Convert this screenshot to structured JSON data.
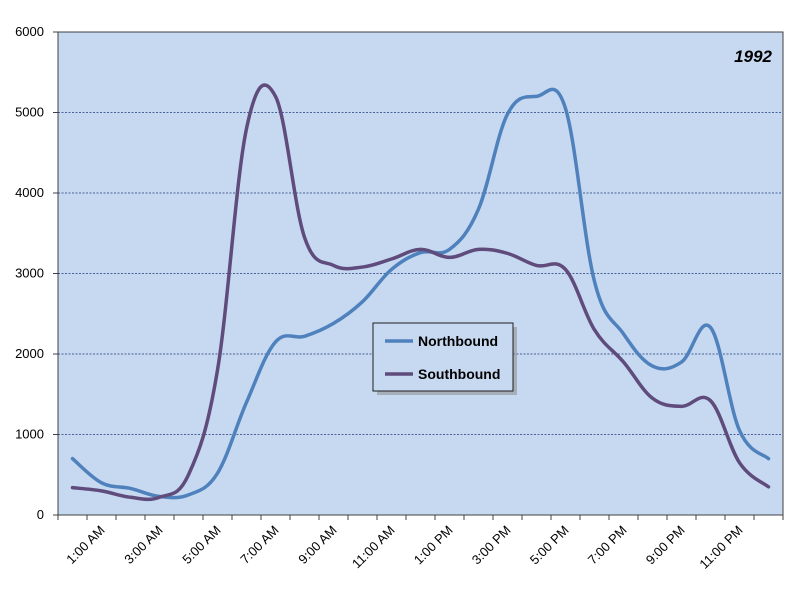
{
  "chart_data": {
    "type": "line",
    "title": "1992",
    "xlabel": "",
    "ylabel": "",
    "ylim": [
      0,
      6000
    ],
    "yticks": [
      "0",
      "1000",
      "2000",
      "3000",
      "4000",
      "5000",
      "6000"
    ],
    "grid": "horizontal dashed",
    "legend_position": "center",
    "plot_background": "#C6D9F1",
    "x_tick_labels": [
      "1:00 AM",
      "3:00 AM",
      "5:00 AM",
      "7:00 AM",
      "9:00 AM",
      "11:00 AM",
      "1:00 PM",
      "3:00 PM",
      "5:00 PM",
      "7:00 PM",
      "9:00 PM",
      "11:00 PM"
    ],
    "x": [
      "12:00 AM",
      "1:00 AM",
      "2:00 AM",
      "3:00 AM",
      "4:00 AM",
      "5:00 AM",
      "6:00 AM",
      "7:00 AM",
      "8:00 AM",
      "9:00 AM",
      "10:00 AM",
      "11:00 AM",
      "12:00 PM",
      "1:00 PM",
      "2:00 PM",
      "3:00 PM",
      "4:00 PM",
      "5:00 PM",
      "6:00 PM",
      "7:00 PM",
      "8:00 PM",
      "9:00 PM",
      "10:00 PM",
      "11:00 PM",
      "12:00 AM"
    ],
    "series": [
      {
        "name": "Northbound",
        "color": "#4F81BD",
        "values": [
          700,
          400,
          330,
          230,
          250,
          520,
          1400,
          2150,
          2220,
          2380,
          2650,
          3050,
          3260,
          3300,
          3800,
          4980,
          5200,
          5050,
          2900,
          2250,
          1850,
          1900,
          2330,
          1050,
          700
        ]
      },
      {
        "name": "Southbound",
        "color": "#5F4B7C",
        "values": [
          340,
          300,
          220,
          220,
          500,
          1800,
          4800,
          5200,
          3450,
          3100,
          3080,
          3180,
          3300,
          3200,
          3300,
          3250,
          3100,
          3050,
          2300,
          1900,
          1450,
          1350,
          1420,
          650,
          350
        ]
      }
    ]
  }
}
